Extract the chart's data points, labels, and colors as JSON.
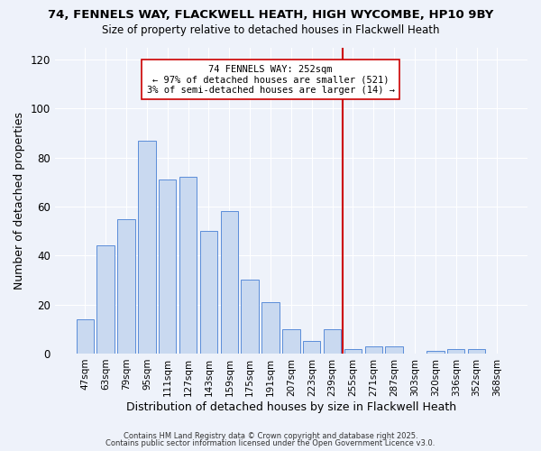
{
  "title1": "74, FENNELS WAY, FLACKWELL HEATH, HIGH WYCOMBE, HP10 9BY",
  "title2": "Size of property relative to detached houses in Flackwell Heath",
  "xlabel": "Distribution of detached houses by size in Flackwell Heath",
  "ylabel": "Number of detached properties",
  "bar_labels": [
    "47sqm",
    "63sqm",
    "79sqm",
    "95sqm",
    "111sqm",
    "127sqm",
    "143sqm",
    "159sqm",
    "175sqm",
    "191sqm",
    "207sqm",
    "223sqm",
    "239sqm",
    "255sqm",
    "271sqm",
    "287sqm",
    "303sqm",
    "320sqm",
    "336sqm",
    "352sqm",
    "368sqm"
  ],
  "bar_values": [
    14,
    44,
    55,
    87,
    71,
    72,
    50,
    58,
    30,
    21,
    10,
    5,
    10,
    2,
    3,
    3,
    0,
    1,
    2,
    2,
    0
  ],
  "bar_color": "#c9d9f0",
  "bar_edge_color": "#5b8dd9",
  "vline_color": "#cc0000",
  "annotation_title": "74 FENNELS WAY: 252sqm",
  "annotation_line1": "← 97% of detached houses are smaller (521)",
  "annotation_line2": "3% of semi-detached houses are larger (14) →",
  "ylim": [
    0,
    125
  ],
  "yticks": [
    0,
    20,
    40,
    60,
    80,
    100,
    120
  ],
  "background_color": "#eef2fa",
  "grid_color": "#ffffff",
  "footer1": "Contains HM Land Registry data © Crown copyright and database right 2025.",
  "footer2": "Contains public sector information licensed under the Open Government Licence v3.0."
}
